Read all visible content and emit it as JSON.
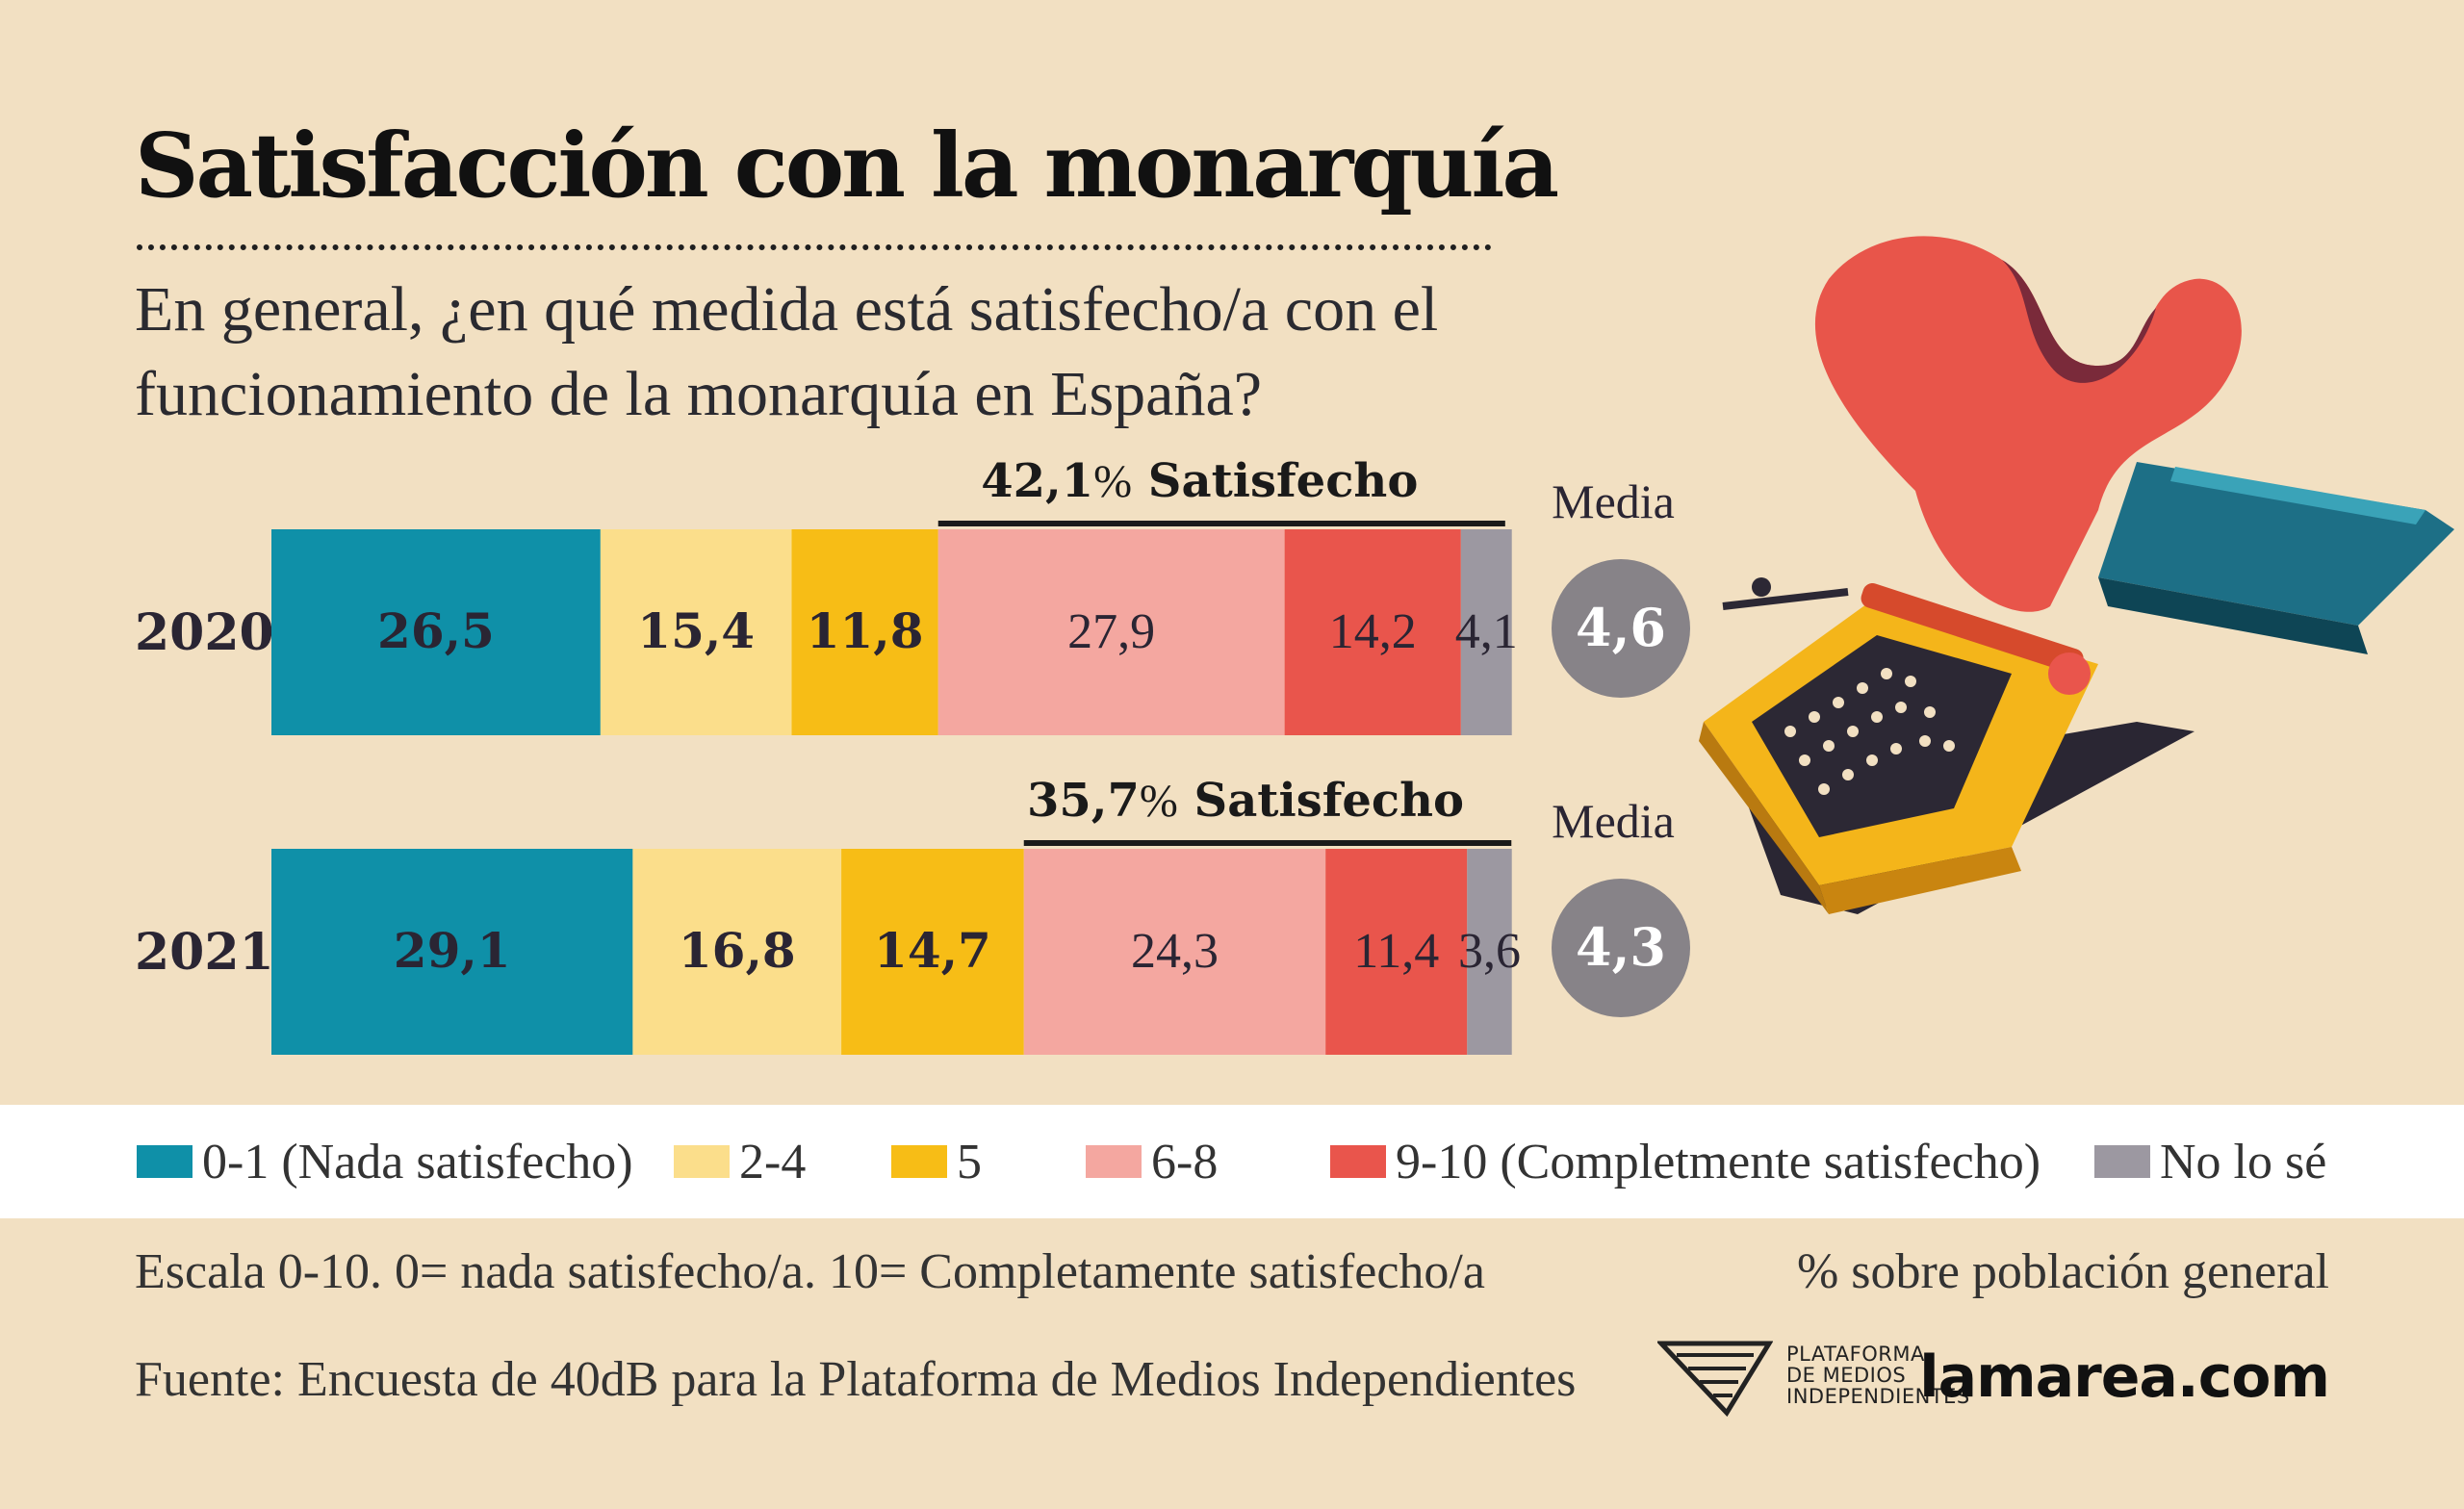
{
  "title": "Satisfacción con la monarquía",
  "subtitle": "En general, ¿en qué medida está satisfecho/a con el funcionamiento de la monarquía en España?",
  "colors": {
    "background": "#f2e0c2",
    "teal": "#0f90a8",
    "light_yellow": "#fbde8b",
    "yellow": "#f7bd16",
    "pink": "#f4a7a0",
    "red": "#e9554c",
    "gray": "#9c98a1",
    "media_circle": "#878388"
  },
  "chart_data": {
    "type": "bar",
    "orientation": "horizontal-stacked",
    "unit": "%",
    "categories": [
      "2020",
      "2021"
    ],
    "series": [
      {
        "name": "0-1 (Nada satisfecho)",
        "color": "#0f90a8",
        "values": [
          26.5,
          29.1
        ],
        "labels": [
          "26,5",
          "29,1"
        ],
        "label_style": "bold"
      },
      {
        "name": "2-4",
        "color": "#fbde8b",
        "values": [
          15.4,
          16.8
        ],
        "labels": [
          "15,4",
          "16,8"
        ],
        "label_style": "bold"
      },
      {
        "name": "5",
        "color": "#f7bd16",
        "values": [
          11.8,
          14.7
        ],
        "labels": [
          "11,8",
          "14,7"
        ],
        "label_style": "bold"
      },
      {
        "name": "6-8",
        "color": "#f4a7a0",
        "values": [
          27.9,
          24.3
        ],
        "labels": [
          "27,9",
          "24,3"
        ],
        "label_style": "regular"
      },
      {
        "name": "9-10 (Completmente satisfecho)",
        "color": "#e9554c",
        "values": [
          14.2,
          11.4
        ],
        "labels": [
          "14,2",
          "11,4"
        ],
        "label_style": "regular"
      },
      {
        "name": "No lo sé",
        "color": "#9c98a1",
        "values": [
          4.1,
          3.6
        ],
        "labels": [
          "4,1",
          "3,6"
        ],
        "label_style": "regular"
      }
    ],
    "satisfied_brackets": [
      {
        "value": "42,1",
        "pct_sign": "%",
        "text": "Satisfecho"
      },
      {
        "value": "35,7",
        "pct_sign": "%",
        "text": "Satisfecho"
      }
    ],
    "media": [
      {
        "label": "Media",
        "value": "4,6"
      },
      {
        "label": "Media",
        "value": "4,3"
      }
    ]
  },
  "legend": [
    {
      "label": "0-1 (Nada satisfecho)",
      "color": "#0f90a8"
    },
    {
      "label": "2-4",
      "color": "#fbde8b"
    },
    {
      "label": "5",
      "color": "#f7bd16"
    },
    {
      "label": "6-8",
      "color": "#f4a7a0"
    },
    {
      "label": "9-10 (Completmente satisfecho)",
      "color": "#e9554c"
    },
    {
      "label": "No lo sé",
      "color": "#9c98a1"
    }
  ],
  "footer": {
    "scale_note": "Escala 0-10. 0= nada satisfecho/a. 10= Completamente satisfecho/a",
    "pct_note": "% sobre población general",
    "source": "Fuente: Encuesta de 40dB para la Plataforma de Medios Independientes",
    "pmi_lines": [
      "PLATAFORMA",
      "DE MEDIOS",
      "INDEPENDIENTES"
    ],
    "brand": "lamarea.com"
  }
}
